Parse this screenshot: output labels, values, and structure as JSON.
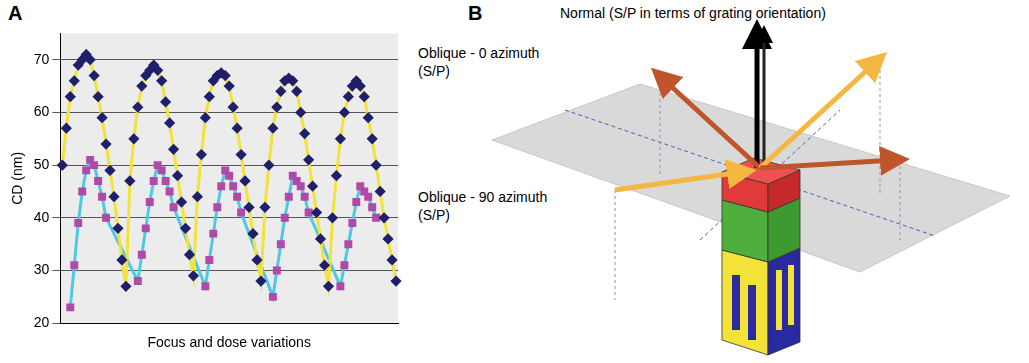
{
  "panel_labels": [
    "A",
    "B"
  ],
  "chart_data": {
    "type": "line",
    "x_label": "Focus and dose variations",
    "y_label": "CD (nm)",
    "categories": [
      null,
      null,
      null,
      null,
      null,
      null,
      null,
      null,
      null,
      null,
      null,
      null,
      null,
      null,
      null,
      null,
      null,
      null,
      null,
      null,
      null,
      null,
      null,
      null,
      null,
      null,
      null,
      null,
      null,
      null,
      null,
      null,
      null,
      null,
      null,
      null,
      null,
      null,
      null,
      null,
      null,
      null,
      null,
      null,
      null,
      null,
      null,
      null,
      null,
      null,
      null,
      null,
      null,
      null,
      null,
      null,
      null,
      null,
      null,
      null,
      null,
      null,
      null,
      null,
      null,
      null,
      null,
      null,
      null,
      null,
      null,
      null,
      null,
      null,
      null,
      null,
      null,
      null,
      null,
      null,
      null,
      null,
      null,
      null,
      null
    ],
    "series": [
      {
        "color": "#f2e23a",
        "marker": "diamond",
        "values": [
          50,
          57,
          63,
          66,
          69,
          70,
          71,
          70,
          67,
          63,
          59,
          54,
          49,
          44,
          38,
          32,
          27,
          47,
          55,
          61,
          65,
          67,
          68,
          69,
          68,
          66,
          62,
          58,
          53,
          48,
          43,
          38,
          33,
          29,
          44,
          52,
          59,
          63,
          66,
          67,
          67.5,
          67,
          65,
          61,
          57,
          52,
          47,
          42,
          37,
          32,
          28,
          42,
          50,
          57,
          61,
          64,
          66,
          66.5,
          66,
          64,
          60,
          56,
          51,
          46,
          41,
          36,
          31,
          27,
          40,
          48,
          55,
          60,
          63,
          65,
          66,
          65,
          63,
          59,
          55,
          50,
          45,
          40,
          36,
          32,
          28
        ]
      },
      {
        "color": "#4fc8e0",
        "marker": "square",
        "values": [
          null,
          null,
          23,
          31,
          39,
          45,
          49,
          51,
          50,
          47,
          44,
          40,
          null,
          null,
          null,
          null,
          null,
          null,
          null,
          28,
          33,
          38,
          43,
          47,
          50,
          49,
          47,
          45,
          42,
          null,
          null,
          null,
          null,
          null,
          null,
          null,
          27,
          32,
          37,
          42,
          46,
          49,
          48,
          46,
          44,
          41,
          null,
          null,
          null,
          null,
          null,
          null,
          null,
          25,
          30,
          35,
          40,
          44,
          48,
          47,
          46,
          44,
          41,
          null,
          null,
          null,
          null,
          null,
          null,
          null,
          27,
          31,
          35,
          39,
          43,
          46,
          45,
          44,
          42,
          40,
          null,
          null,
          null,
          null,
          null
        ]
      }
    ],
    "ylim": [
      20,
      75
    ],
    "yticks": [
      20,
      30,
      40,
      50,
      60,
      70
    ],
    "grid": true,
    "tick_labels": "y"
  },
  "diagram": {
    "normal_label": "Normal (S/P in terms of grating orientation)",
    "oblique_0_label": [
      "Oblique - 0 azimuth",
      "(S/P)"
    ],
    "oblique_90_label": [
      "Oblique - 90 azimuth",
      "(S/P)"
    ]
  }
}
